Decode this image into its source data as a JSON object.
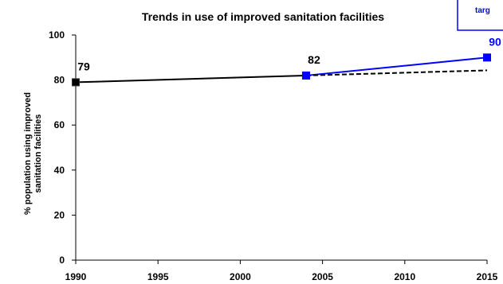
{
  "chart_data": {
    "type": "line",
    "title": "Trends in use of improved sanitation facilities",
    "ylabel_lines": [
      "% population  using improved",
      "sanitation facilities"
    ],
    "xlabel": "",
    "xlim": [
      1990,
      2015
    ],
    "ylim": [
      0,
      100
    ],
    "x_ticks": [
      1990,
      1995,
      2000,
      2005,
      2010,
      2015
    ],
    "y_ticks": [
      0,
      20,
      40,
      60,
      80,
      100
    ],
    "grid": false,
    "series": [
      {
        "name": "",
        "style": "solid",
        "color": "#000000",
        "marker": "square",
        "x": [
          1990,
          2004
        ],
        "y": [
          79,
          82
        ]
      },
      {
        "name": "",
        "style": "solid",
        "color": "#0000ff",
        "marker": "square",
        "x": [
          2004,
          2015
        ],
        "y": [
          82,
          90
        ]
      },
      {
        "name": "",
        "style": "dashed",
        "color": "#000000",
        "marker": "none",
        "x": [
          2004,
          2015
        ],
        "y": [
          82,
          84.3
        ]
      }
    ],
    "data_labels": [
      {
        "x": 1990,
        "y": 79,
        "text": "79",
        "color": "#000000"
      },
      {
        "x": 2004,
        "y": 82,
        "text": "82",
        "color": "#000000"
      },
      {
        "x": 2015,
        "y": 90,
        "text": "90",
        "color": "#0000ff"
      }
    ],
    "legend_text": "targ",
    "legend_color": "#0000ff",
    "legend_placement": "top-right"
  }
}
